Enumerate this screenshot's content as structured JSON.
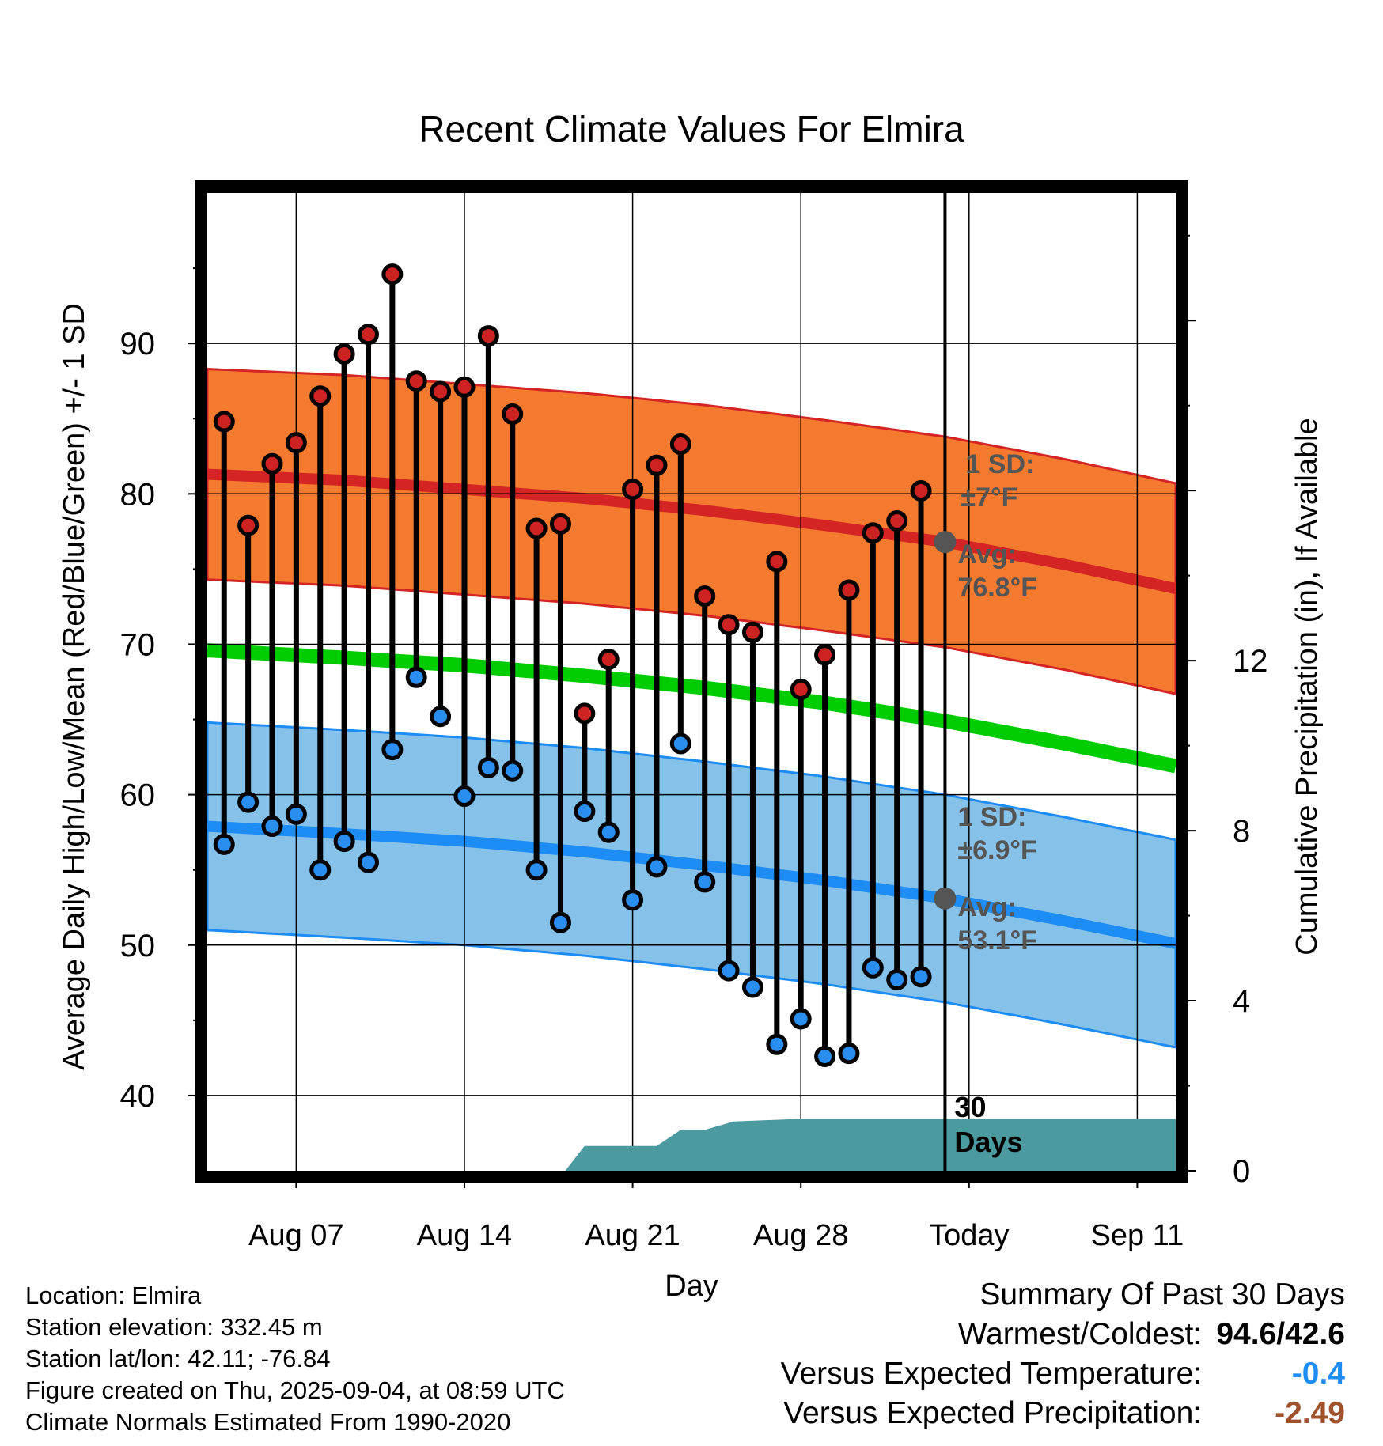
{
  "chart_data": {
    "type": "line",
    "title": "Recent Climate Values For Elmira",
    "xlabel": "Day",
    "ylabel": "Average Daily High/Low/Mean (Red/Blue/Green) +/- 1 SD",
    "y2label": "Cumulative Precipitation (in), If Available",
    "x_tick_labels": [
      "Aug 07",
      "Aug 14",
      "Aug 21",
      "Aug 28",
      "Today",
      "Sep 11"
    ],
    "y_ticks": [
      40,
      50,
      60,
      70,
      80,
      90
    ],
    "y2_ticks": [
      0,
      4,
      8,
      12
    ],
    "ylim": [
      35,
      100
    ],
    "y2lim": [
      0,
      23
    ],
    "grid": true,
    "day_range": [
      -30.7,
      9.6
    ],
    "observed_days": [
      -30,
      -29,
      -28,
      -27,
      -26,
      -25,
      -24,
      -23,
      -22,
      -21,
      -20,
      -19,
      -18,
      -17,
      -16,
      -15,
      -14,
      -13,
      -12,
      -11,
      -10,
      -9,
      -8,
      -7,
      -6,
      -5,
      -4,
      -3,
      -2,
      -1
    ],
    "observed_high": [
      84.8,
      77.9,
      82.0,
      83.4,
      86.5,
      89.3,
      90.6,
      94.6,
      87.5,
      86.8,
      87.1,
      90.5,
      85.3,
      77.7,
      78.0,
      65.4,
      69.0,
      80.3,
      81.9,
      83.3,
      73.2,
      71.3,
      70.8,
      75.5,
      67.0,
      69.3,
      73.6,
      77.4,
      78.2,
      80.2
    ],
    "observed_low": [
      56.7,
      59.5,
      57.9,
      58.7,
      55.0,
      56.9,
      55.5,
      63.0,
      67.8,
      65.2,
      59.9,
      61.8,
      61.6,
      55.0,
      51.5,
      58.9,
      57.5,
      53.0,
      55.2,
      63.4,
      54.2,
      48.3,
      47.2,
      43.4,
      45.1,
      42.6,
      42.8,
      48.5,
      47.7,
      47.9
    ],
    "normal_day_samples": [
      -30.7,
      -25,
      -20,
      -15,
      -10,
      -5,
      0,
      5,
      9.6
    ],
    "avg_high_normal": [
      81.3,
      80.9,
      80.3,
      79.7,
      78.9,
      77.9,
      76.8,
      75.3,
      73.7
    ],
    "avg_low_normal": [
      57.9,
      57.4,
      56.9,
      56.2,
      55.3,
      54.3,
      53.1,
      51.6,
      50.1
    ],
    "avg_mean_normal": [
      69.6,
      69.1,
      68.6,
      67.9,
      67.1,
      66.1,
      64.9,
      63.4,
      61.9
    ],
    "high_sd": 7,
    "low_sd": 6.9,
    "precip_days": [
      -30.7,
      -15.8,
      -15,
      -12,
      -11,
      -10,
      -8.8,
      -6,
      9.6
    ],
    "precip_cumulative": [
      0,
      0,
      0.58,
      0.58,
      0.96,
      0.96,
      1.16,
      1.22,
      1.22
    ],
    "annotations": {
      "high_sd_label": "1 SD:",
      "high_sd_value": "±7°F",
      "high_avg_label": "Avg:",
      "high_avg_value": "76.8°F",
      "low_sd_label": "1 SD:",
      "low_sd_value": "±6.9°F",
      "low_avg_label": "Avg:",
      "low_avg_value": "53.1°F",
      "days_count": "30",
      "days_word": "Days"
    },
    "colors": {
      "high_band": "#f47a30",
      "high_line": "#d42424",
      "low_band": "#85c1e8",
      "low_line": "#1e8cf5",
      "mean_line": "#00cc00",
      "precip": "#4a9aa0",
      "high_dot": "#cc2222",
      "low_dot": "#2a8ef0",
      "today_dot": "#555555",
      "annotation_text": "#555555"
    }
  },
  "info": {
    "location": "Location: Elmira",
    "elevation": "Station elevation: 332.45 m",
    "latlon": "Station lat/lon: 42.11; -76.84",
    "created": "Figure created on Thu, 2025-09-04, at 08:59 UTC",
    "normals": "Climate Normals Estimated From 1990-2020"
  },
  "summary": {
    "heading": "Summary Of Past 30 Days",
    "warm_cold_label": "Warmest/Coldest:",
    "warm_cold_value": "94.6/42.6",
    "temp_label": "Versus Expected Temperature:",
    "temp_value": "-0.4",
    "temp_color": "#1e8cf5",
    "precip_label": "Versus Expected Precipitation:",
    "precip_value": "-2.49",
    "precip_color": "#a0522d"
  }
}
